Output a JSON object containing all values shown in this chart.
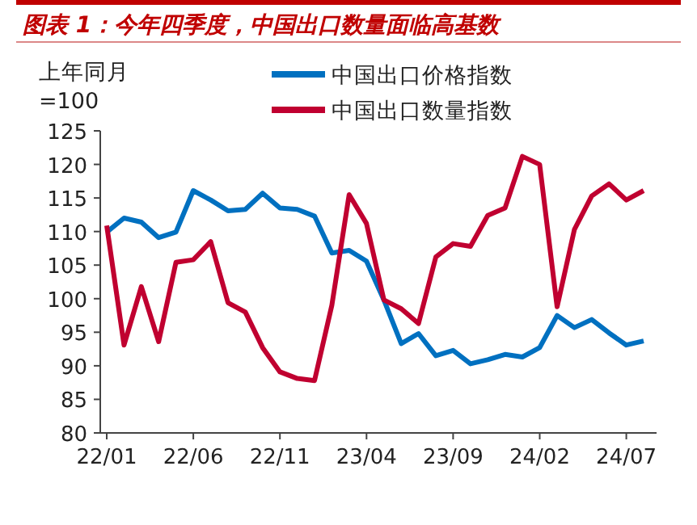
{
  "chart_data": {
    "type": "line",
    "title": "图表 1：今年四季度，中国出口数量面临高基数",
    "ylabel": "上年同月=100",
    "categories": [
      "22/01",
      null,
      null,
      null,
      null,
      "22/06",
      null,
      null,
      null,
      null,
      "22/11",
      null,
      null,
      null,
      null,
      "23/04",
      null,
      null,
      null,
      null,
      "23/09",
      null,
      null,
      null,
      null,
      "24/02",
      null,
      null,
      null,
      null,
      "24/07",
      null
    ],
    "series": [
      {
        "name": "中国出口价格指数",
        "color": "#0070c0",
        "values": [
          109.9,
          112.0,
          111.4,
          109.1,
          109.9,
          116.1,
          114.7,
          113.1,
          113.3,
          115.7,
          113.5,
          113.3,
          112.3,
          106.8,
          107.2,
          105.6,
          99.8,
          93.3,
          94.8,
          91.5,
          92.3,
          90.3,
          90.9,
          91.7,
          91.3,
          92.7,
          97.5,
          95.7,
          96.9,
          94.9,
          93.1,
          93.7
        ]
      },
      {
        "name": "中国出口数量指数",
        "color": "#c00030",
        "values": [
          110.9,
          93.1,
          101.8,
          93.6,
          105.4,
          105.8,
          108.5,
          99.4,
          98.0,
          92.7,
          89.1,
          88.1,
          87.8,
          99.0,
          115.5,
          111.2,
          99.8,
          98.5,
          96.3,
          106.2,
          108.2,
          107.8,
          112.4,
          113.5,
          121.2,
          120.0,
          98.8,
          110.3,
          115.3,
          117.1,
          114.7,
          116.1
        ]
      }
    ],
    "ylim": [
      80,
      125
    ],
    "yticks": [
      80,
      85,
      90,
      95,
      100,
      105,
      110,
      115,
      120,
      125
    ],
    "legend": "top",
    "grid": false,
    "marker": "none",
    "line_style": "solid"
  }
}
